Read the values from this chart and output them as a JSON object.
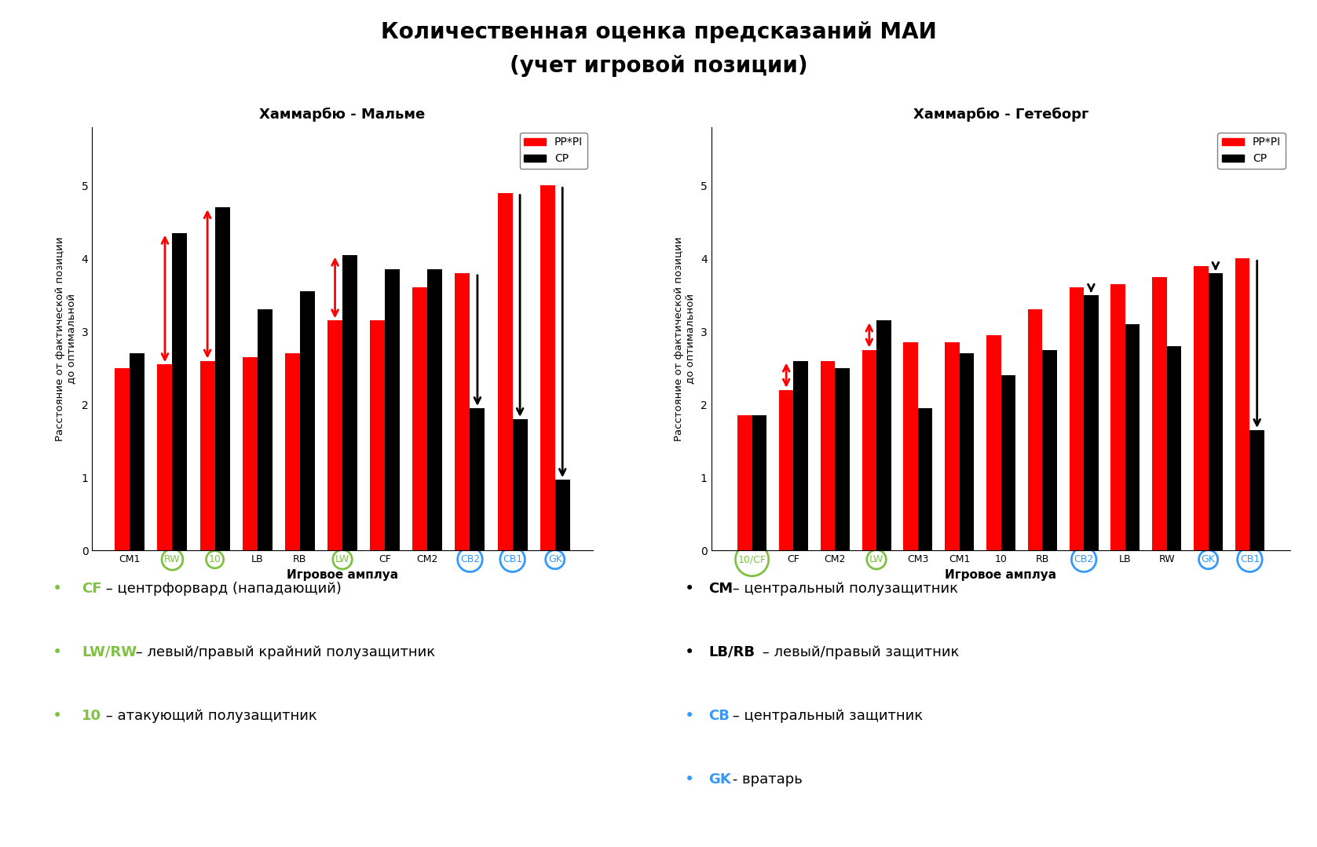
{
  "title_line1": "Количественная оценка предсказаний МАИ",
  "title_line2": "(учет игровой позиции)",
  "left_title": "Хаммарбю - Мальме",
  "right_title": "Хаммарбю - Гетеборг",
  "ylabel": "Расстояние от фактической позиции\nдо оптимальной",
  "xlabel": "Игровое амплуа",
  "left_categories": [
    "CM1",
    "RW",
    "10",
    "LB",
    "RB",
    "LW",
    "CF",
    "CM2",
    "CB2",
    "CB1",
    "GK"
  ],
  "left_red": [
    2.5,
    2.55,
    2.6,
    2.65,
    2.7,
    3.15,
    3.15,
    3.6,
    3.8,
    4.9,
    5.0
  ],
  "left_black": [
    2.7,
    4.35,
    4.7,
    3.3,
    3.55,
    4.05,
    3.85,
    3.85,
    1.95,
    1.8,
    0.97
  ],
  "right_categories": [
    "10/CF",
    "CF",
    "CM2",
    "LW",
    "CM3",
    "CM1",
    "10",
    "RB",
    "CB2",
    "LB",
    "RW",
    "GK",
    "CB1"
  ],
  "right_red": [
    1.85,
    2.2,
    2.6,
    2.75,
    2.85,
    2.85,
    2.95,
    3.3,
    3.6,
    3.65,
    3.75,
    3.9,
    4.0
  ],
  "right_black": [
    1.85,
    2.6,
    2.5,
    3.15,
    1.95,
    2.7,
    2.4,
    2.75,
    3.5,
    3.1,
    2.8,
    3.8,
    1.65
  ],
  "red_color": "#ff0000",
  "black_color": "#000000",
  "background_color": "#ffffff",
  "green_color": "#7fc241",
  "blue_color": "#3399ff",
  "left_green_circle_cats": [
    "RW",
    "10",
    "LW"
  ],
  "left_blue_circle_cats": [
    "CB2",
    "CB1",
    "GK"
  ],
  "right_green_circle_cats": [
    "10/CF",
    "LW"
  ],
  "right_blue_circle_cats": [
    "CB2",
    "GK",
    "CB1"
  ],
  "legend_red_label": "PP*PI",
  "legend_black_label": "CP",
  "footnotes_left": [
    {
      "key": "CF",
      "rest": " – центрфорвард (нападающий)",
      "key_color": "#7fc241",
      "bullet_color": "#7fc241"
    },
    {
      "key": "LW/RW",
      "rest": " – левый/правый крайний полузащитник",
      "key_color": "#7fc241",
      "bullet_color": "#7fc241"
    },
    {
      "key": "10",
      "rest": " – атакующий полузащитник",
      "key_color": "#7fc241",
      "bullet_color": "#7fc241"
    }
  ],
  "footnotes_right": [
    {
      "key": "СМ",
      "rest": " – центральный полузащитник",
      "key_color": "#000000",
      "bullet_color": "#000000"
    },
    {
      "key": "LB/RB",
      "rest": " – левый/правый защитник",
      "key_color": "#000000",
      "bullet_color": "#000000"
    },
    {
      "key": "CB",
      "rest": " – центральный защитник",
      "key_color": "#3399ff",
      "bullet_color": "#3399ff"
    },
    {
      "key": "GK",
      "rest": " - вратарь",
      "key_color": "#3399ff",
      "bullet_color": "#3399ff"
    }
  ]
}
